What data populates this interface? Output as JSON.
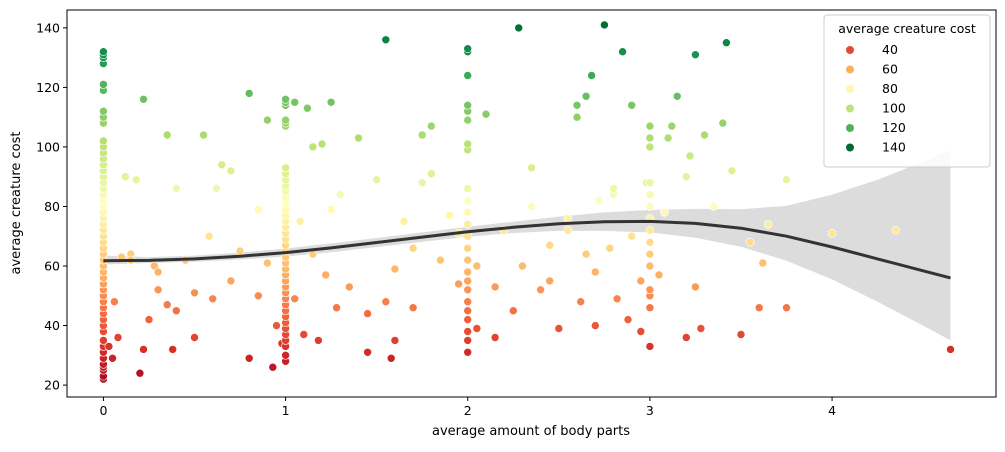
{
  "chart_data": {
    "type": "scatter",
    "title": "",
    "xlabel": "average amount of body parts",
    "ylabel": "average creature cost",
    "xlim": [
      -0.2,
      4.9
    ],
    "ylim": [
      16,
      146
    ],
    "xticks": [
      0,
      1,
      2,
      3,
      4
    ],
    "yticks": [
      20,
      40,
      60,
      80,
      100,
      120,
      140
    ],
    "grid": false,
    "legend": {
      "title": "average creature cost",
      "placement": "top-right",
      "entries": [
        {
          "label": "40",
          "color": "#e34a33"
        },
        {
          "label": "60",
          "color": "#f7b15e"
        },
        {
          "label": "80",
          "color": "#fdf6b0"
        },
        {
          "label": "100",
          "color": "#bde47b"
        },
        {
          "label": "120",
          "color": "#4fb253"
        },
        {
          "label": "140",
          "color": "#006837"
        }
      ]
    },
    "colormap": {
      "name": "RdYlGn",
      "domain": [
        20,
        142
      ],
      "stops": [
        "#a50026",
        "#d73027",
        "#f46d43",
        "#fdae61",
        "#fee08b",
        "#ffffbf",
        "#d9ef8b",
        "#a6d96a",
        "#66bd63",
        "#1a9850",
        "#006837"
      ]
    },
    "regression": {
      "color": "#333333",
      "band_color": "#dcdcdc",
      "x": [
        0.0,
        0.25,
        0.5,
        0.75,
        1.0,
        1.25,
        1.5,
        1.75,
        2.0,
        2.25,
        2.5,
        2.75,
        3.0,
        3.25,
        3.5,
        3.75,
        4.0,
        4.25,
        4.5,
        4.65
      ],
      "y": [
        61.8,
        61.9,
        62.4,
        63.3,
        64.5,
        66.1,
        67.9,
        69.7,
        71.5,
        73.0,
        74.2,
        74.9,
        75.0,
        74.3,
        72.7,
        70.0,
        66.4,
        62.4,
        58.4,
        56.0
      ],
      "lower": [
        60.5,
        61.0,
        61.4,
        62.2,
        63.2,
        64.6,
        66.4,
        68.1,
        69.8,
        71.1,
        71.8,
        71.8,
        71.3,
        69.5,
        66.5,
        61.8,
        55.5,
        48.0,
        40.0,
        35.0
      ],
      "upper": [
        63.5,
        63.0,
        63.5,
        64.5,
        65.9,
        67.6,
        69.4,
        71.3,
        73.2,
        74.9,
        76.6,
        78.0,
        78.8,
        79.2,
        79.1,
        80.2,
        84.0,
        89.0,
        95.0,
        99.0
      ]
    },
    "points": [
      [
        0,
        22
      ],
      [
        0,
        23
      ],
      [
        0,
        25
      ],
      [
        0,
        26
      ],
      [
        0,
        27
      ],
      [
        0,
        29
      ],
      [
        0,
        31
      ],
      [
        0,
        33
      ],
      [
        0,
        35
      ],
      [
        0,
        38
      ],
      [
        0,
        40
      ],
      [
        0,
        42
      ],
      [
        0,
        44
      ],
      [
        0,
        46
      ],
      [
        0,
        48
      ],
      [
        0,
        50
      ],
      [
        0,
        52
      ],
      [
        0,
        54
      ],
      [
        0,
        56
      ],
      [
        0,
        58
      ],
      [
        0,
        60
      ],
      [
        0,
        62
      ],
      [
        0,
        64
      ],
      [
        0,
        66
      ],
      [
        0,
        68
      ],
      [
        0,
        70
      ],
      [
        0,
        72
      ],
      [
        0,
        74
      ],
      [
        0,
        76
      ],
      [
        0,
        78
      ],
      [
        0,
        80
      ],
      [
        0,
        82
      ],
      [
        0,
        84
      ],
      [
        0,
        86
      ],
      [
        0,
        88
      ],
      [
        0,
        90
      ],
      [
        0,
        92
      ],
      [
        0,
        94
      ],
      [
        0,
        96
      ],
      [
        0,
        98
      ],
      [
        0,
        100
      ],
      [
        0,
        102
      ],
      [
        0,
        108
      ],
      [
        0,
        110
      ],
      [
        0,
        112
      ],
      [
        0,
        119
      ],
      [
        0,
        121
      ],
      [
        0,
        128
      ],
      [
        0,
        130
      ],
      [
        0,
        131
      ],
      [
        0,
        132
      ],
      [
        0.03,
        33
      ],
      [
        0.05,
        29
      ],
      [
        0.06,
        48
      ],
      [
        0.08,
        36
      ],
      [
        0.1,
        63
      ],
      [
        0.12,
        90
      ],
      [
        0.15,
        64
      ],
      [
        0.18,
        89
      ],
      [
        0.2,
        24
      ],
      [
        0.22,
        32
      ],
      [
        0.25,
        42
      ],
      [
        0.28,
        60
      ],
      [
        0.3,
        58
      ],
      [
        0.35,
        47
      ],
      [
        0.38,
        32
      ],
      [
        0.4,
        45
      ],
      [
        0.45,
        62
      ],
      [
        0.5,
        51
      ],
      [
        0.55,
        104
      ],
      [
        0.58,
        70
      ],
      [
        0.62,
        86
      ],
      [
        0.65,
        94
      ],
      [
        0.7,
        55
      ],
      [
        0.75,
        65
      ],
      [
        0.8,
        118
      ],
      [
        0.85,
        79
      ],
      [
        0.9,
        61
      ],
      [
        0.95,
        40
      ],
      [
        0.98,
        34
      ],
      [
        0.15,
        62
      ],
      [
        0.22,
        116
      ],
      [
        0.3,
        52
      ],
      [
        0.35,
        104
      ],
      [
        0.4,
        86
      ],
      [
        0.5,
        36
      ],
      [
        0.6,
        49
      ],
      [
        0.7,
        92
      ],
      [
        0.8,
        29
      ],
      [
        0.85,
        50
      ],
      [
        0.9,
        109
      ],
      [
        0.93,
        26
      ],
      [
        1,
        28
      ],
      [
        1,
        30
      ],
      [
        1,
        33
      ],
      [
        1,
        35
      ],
      [
        1,
        37
      ],
      [
        1,
        39
      ],
      [
        1,
        41
      ],
      [
        1,
        43
      ],
      [
        1,
        45
      ],
      [
        1,
        47
      ],
      [
        1,
        49
      ],
      [
        1,
        51
      ],
      [
        1,
        53
      ],
      [
        1,
        55
      ],
      [
        1,
        57
      ],
      [
        1,
        59
      ],
      [
        1,
        61
      ],
      [
        1,
        63
      ],
      [
        1,
        65
      ],
      [
        1,
        67
      ],
      [
        1,
        69
      ],
      [
        1,
        71
      ],
      [
        1,
        73
      ],
      [
        1,
        75
      ],
      [
        1,
        77
      ],
      [
        1,
        79
      ],
      [
        1,
        81
      ],
      [
        1,
        83
      ],
      [
        1,
        85
      ],
      [
        1,
        87
      ],
      [
        1,
        89
      ],
      [
        1,
        91
      ],
      [
        1,
        93
      ],
      [
        1,
        107
      ],
      [
        1,
        108
      ],
      [
        1,
        109
      ],
      [
        1,
        114
      ],
      [
        1,
        115
      ],
      [
        1,
        116
      ],
      [
        1.05,
        49
      ],
      [
        1.08,
        75
      ],
      [
        1.1,
        37
      ],
      [
        1.12,
        113
      ],
      [
        1.15,
        64
      ],
      [
        1.18,
        35
      ],
      [
        1.2,
        101
      ],
      [
        1.22,
        57
      ],
      [
        1.25,
        115
      ],
      [
        1.28,
        46
      ],
      [
        1.3,
        84
      ],
      [
        1.35,
        53
      ],
      [
        1.4,
        103
      ],
      [
        1.45,
        31
      ],
      [
        1.5,
        89
      ],
      [
        1.55,
        48
      ],
      [
        1.58,
        29
      ],
      [
        1.6,
        59
      ],
      [
        1.65,
        75
      ],
      [
        1.7,
        66
      ],
      [
        1.75,
        88
      ],
      [
        1.8,
        107
      ],
      [
        1.85,
        62
      ],
      [
        1.9,
        77
      ],
      [
        1.95,
        54
      ],
      [
        1.05,
        115
      ],
      [
        1.15,
        100
      ],
      [
        1.25,
        79
      ],
      [
        1.45,
        44
      ],
      [
        1.55,
        136
      ],
      [
        1.6,
        35
      ],
      [
        1.7,
        46
      ],
      [
        1.75,
        104
      ],
      [
        1.8,
        91
      ],
      [
        1.95,
        71
      ],
      [
        2,
        31
      ],
      [
        2,
        35
      ],
      [
        2,
        38
      ],
      [
        2,
        42
      ],
      [
        2,
        45
      ],
      [
        2,
        48
      ],
      [
        2,
        52
      ],
      [
        2,
        55
      ],
      [
        2,
        58
      ],
      [
        2,
        62
      ],
      [
        2,
        66
      ],
      [
        2,
        70
      ],
      [
        2,
        74
      ],
      [
        2,
        78
      ],
      [
        2,
        82
      ],
      [
        2,
        86
      ],
      [
        2,
        99
      ],
      [
        2,
        101
      ],
      [
        2,
        109
      ],
      [
        2,
        112
      ],
      [
        2,
        114
      ],
      [
        2,
        124
      ],
      [
        2,
        132
      ],
      [
        2,
        133
      ],
      [
        2.05,
        39
      ],
      [
        2.1,
        111
      ],
      [
        2.15,
        53
      ],
      [
        2.2,
        72
      ],
      [
        2.25,
        45
      ],
      [
        2.28,
        140
      ],
      [
        2.3,
        60
      ],
      [
        2.35,
        93
      ],
      [
        2.4,
        52
      ],
      [
        2.45,
        67
      ],
      [
        2.5,
        39
      ],
      [
        2.55,
        76
      ],
      [
        2.6,
        110
      ],
      [
        2.62,
        48
      ],
      [
        2.65,
        117
      ],
      [
        2.68,
        124
      ],
      [
        2.7,
        58
      ],
      [
        2.72,
        82
      ],
      [
        2.75,
        141
      ],
      [
        2.78,
        66
      ],
      [
        2.8,
        84
      ],
      [
        2.82,
        49
      ],
      [
        2.85,
        132
      ],
      [
        2.88,
        42
      ],
      [
        2.9,
        70
      ],
      [
        2.95,
        38
      ],
      [
        2.98,
        88
      ],
      [
        2.05,
        60
      ],
      [
        2.15,
        36
      ],
      [
        2.35,
        80
      ],
      [
        2.45,
        55
      ],
      [
        2.55,
        72
      ],
      [
        2.6,
        114
      ],
      [
        2.65,
        64
      ],
      [
        2.7,
        40
      ],
      [
        2.8,
        86
      ],
      [
        2.9,
        114
      ],
      [
        2.95,
        55
      ],
      [
        3,
        33
      ],
      [
        3,
        46
      ],
      [
        3,
        50
      ],
      [
        3,
        52
      ],
      [
        3,
        60
      ],
      [
        3,
        64
      ],
      [
        3,
        68
      ],
      [
        3,
        72
      ],
      [
        3,
        76
      ],
      [
        3,
        80
      ],
      [
        3,
        84
      ],
      [
        3,
        88
      ],
      [
        3,
        100
      ],
      [
        3,
        103
      ],
      [
        3,
        107
      ],
      [
        3.05,
        57
      ],
      [
        3.08,
        78
      ],
      [
        3.1,
        103
      ],
      [
        3.12,
        107
      ],
      [
        3.15,
        117
      ],
      [
        3.2,
        90
      ],
      [
        3.22,
        97
      ],
      [
        3.25,
        131
      ],
      [
        3.28,
        39
      ],
      [
        3.3,
        104
      ],
      [
        3.35,
        80
      ],
      [
        3.4,
        108
      ],
      [
        3.42,
        135
      ],
      [
        3.45,
        92
      ],
      [
        3.5,
        37
      ],
      [
        3.55,
        68
      ],
      [
        3.6,
        46
      ],
      [
        3.62,
        61
      ],
      [
        3.65,
        74
      ],
      [
        3.75,
        89
      ],
      [
        3.75,
        46
      ],
      [
        3.25,
        53
      ],
      [
        3.2,
        36
      ],
      [
        4,
        71
      ],
      [
        4.35,
        72
      ],
      [
        4.65,
        32
      ]
    ]
  }
}
